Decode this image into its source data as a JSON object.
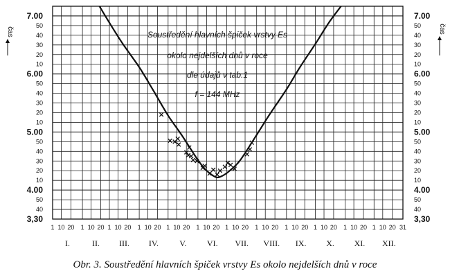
{
  "chart_data": {
    "type": "line",
    "annotation_lines": [
      "Soustředění hlavních špiček vrstvy Es",
      "okolo nejdelších dnů v roce",
      "dle údajů v tab.1",
      "f = 144 MHz"
    ],
    "ylabel_left": "čas",
    "ylabel_right": "čas",
    "y_unit": "hour.minute",
    "ylim_minutes": [
      210,
      430
    ],
    "y_ticks": [
      {
        "label": "3,30",
        "minutes": 210,
        "major": true
      },
      {
        "label": "40",
        "minutes": 220,
        "major": false
      },
      {
        "label": "50",
        "minutes": 230,
        "major": false
      },
      {
        "label": "4.00",
        "minutes": 240,
        "major": true
      },
      {
        "label": "10",
        "minutes": 250,
        "major": false
      },
      {
        "label": "20",
        "minutes": 260,
        "major": false
      },
      {
        "label": "30",
        "minutes": 270,
        "major": false
      },
      {
        "label": "40",
        "minutes": 280,
        "major": false
      },
      {
        "label": "50",
        "minutes": 290,
        "major": false
      },
      {
        "label": "5.00",
        "minutes": 300,
        "major": true
      },
      {
        "label": "10",
        "minutes": 310,
        "major": false
      },
      {
        "label": "20",
        "minutes": 320,
        "major": false
      },
      {
        "label": "30",
        "minutes": 330,
        "major": false
      },
      {
        "label": "40",
        "minutes": 340,
        "major": false
      },
      {
        "label": "50",
        "minutes": 350,
        "major": false
      },
      {
        "label": "6.00",
        "minutes": 360,
        "major": true
      },
      {
        "label": "10",
        "minutes": 370,
        "major": false
      },
      {
        "label": "20",
        "minutes": 380,
        "major": false
      },
      {
        "label": "30",
        "minutes": 390,
        "major": false
      },
      {
        "label": "40",
        "minutes": 400,
        "major": false
      },
      {
        "label": "50",
        "minutes": 410,
        "major": false
      },
      {
        "label": "7.00",
        "minutes": 420,
        "major": true
      }
    ],
    "months": [
      "I.",
      "II.",
      "III.",
      "IV.",
      "V.",
      "VI.",
      "VII.",
      "VIII.",
      "IX.",
      "X.",
      "XI.",
      "XII."
    ],
    "x_day_ticks": [
      "1",
      "10",
      "20"
    ],
    "x_last_tick": "31",
    "xlim_day_of_year": [
      1,
      365
    ],
    "curve": {
      "day_of_year": [
        1,
        15,
        32,
        46,
        60,
        74,
        91,
        105,
        121,
        135,
        152,
        160,
        166,
        172,
        178,
        185,
        196,
        213,
        227,
        244,
        258,
        274,
        288,
        305,
        319,
        335,
        349,
        365
      ],
      "minutes": [
        495,
        480,
        458,
        436,
        413,
        391,
        367,
        344,
        317,
        297,
        271,
        261,
        256,
        253,
        255,
        260,
        271,
        297,
        319,
        344,
        367,
        391,
        413,
        436,
        458,
        480,
        495,
        500
      ]
    },
    "points": {
      "marker": "x",
      "day_of_year": [
        114,
        123,
        128,
        131,
        132,
        140,
        142,
        143,
        145,
        147,
        151,
        157,
        159,
        164,
        168,
        172,
        175,
        180,
        183,
        186,
        190,
        203,
        206,
        208
      ],
      "minutes": [
        318,
        291,
        290,
        293,
        287,
        279,
        276,
        284,
        275,
        271,
        270,
        263,
        265,
        257,
        261,
        256,
        260,
        264,
        268,
        266,
        262,
        277,
        282,
        289
      ]
    },
    "grid": true
  },
  "caption": "Obr.  3. Soustředění hlavních špiček vrstvy Es okolo nejdelších dnů v roce"
}
